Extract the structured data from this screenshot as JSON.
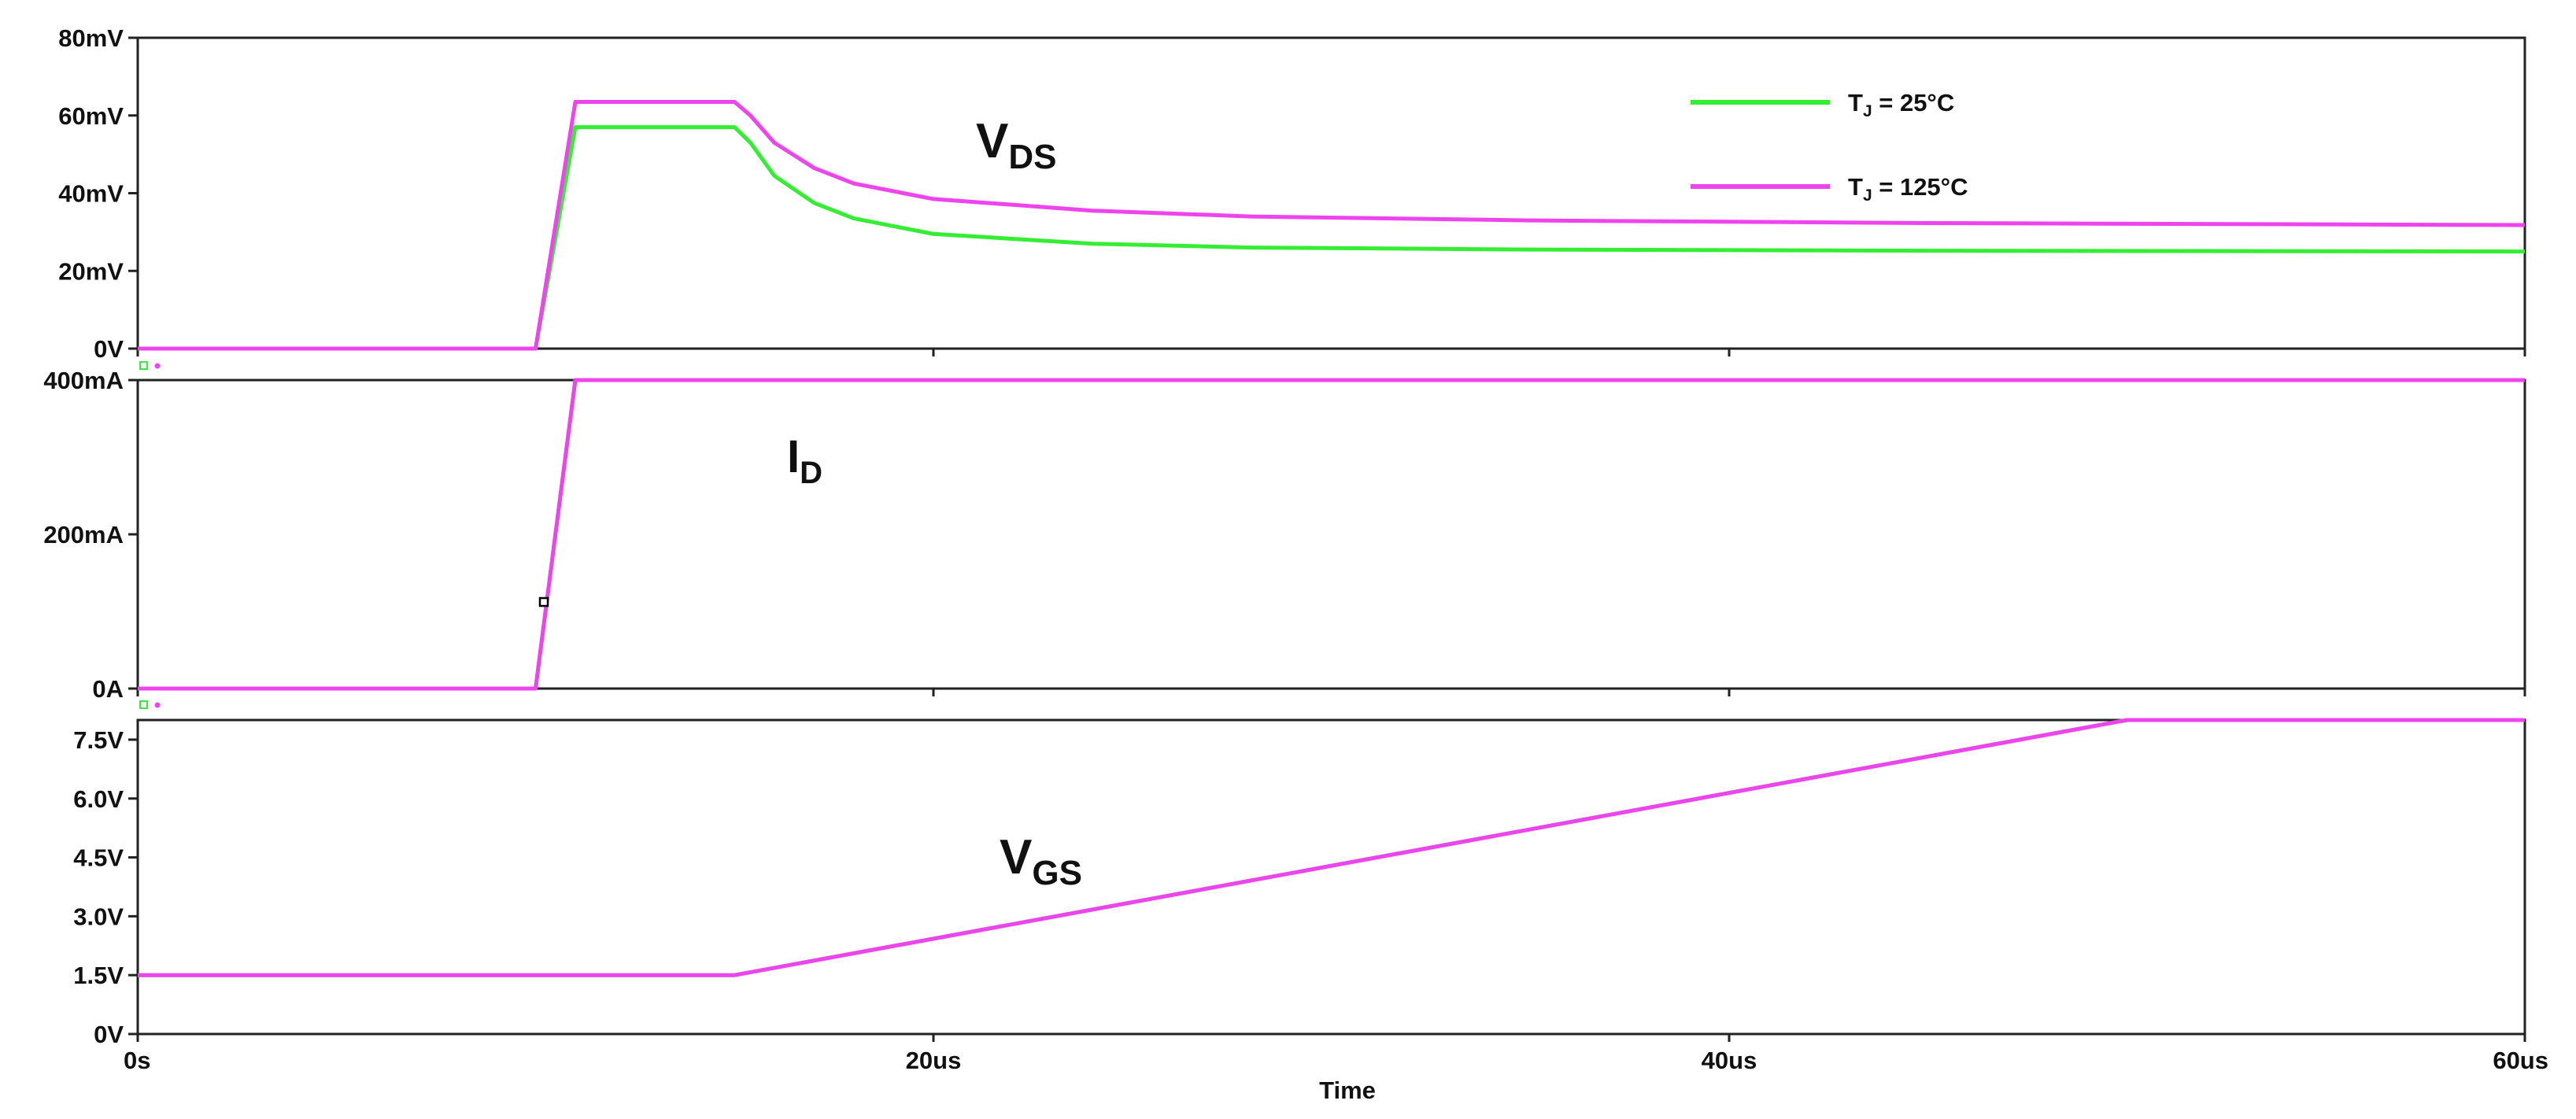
{
  "chart_data": {
    "type": "line",
    "xlabel": "Time",
    "xlim": [
      0,
      60
    ],
    "x_unit": "us",
    "x_ticks": [
      "0s",
      "20us",
      "40us",
      "60us"
    ],
    "x_tick_values": [
      0,
      20,
      40,
      60
    ],
    "legend": {
      "placement": "top-right",
      "entries": [
        {
          "label_main": "T",
          "label_sub": "J",
          "label_rest": " = 25°C",
          "color": "#33ee33"
        },
        {
          "label_main": "T",
          "label_sub": "J",
          "label_rest": " = 125°C",
          "color": "#ee44ee"
        }
      ]
    },
    "panels": [
      {
        "id": "vds",
        "label_main": "V",
        "label_sub": "DS",
        "unit": "mV",
        "ylim": [
          0,
          80
        ],
        "y_ticks": [
          "0V",
          "20mV",
          "40mV",
          "60mV",
          "80mV"
        ],
        "y_tick_values": [
          0,
          20,
          40,
          60,
          80
        ],
        "series": [
          {
            "color": "#33ee33",
            "x": [
              0,
              10,
              11,
              15,
              15.4,
              16,
              17,
              18,
              20,
              24,
              28,
              35,
              45,
              60
            ],
            "y": [
              0,
              0,
              57,
              57,
              53,
              44.5,
              37.5,
              33.5,
              29.5,
              27,
              26,
              25.5,
              25.2,
              25
            ]
          },
          {
            "color": "#ee44ee",
            "x": [
              0,
              10,
              11,
              15,
              15.4,
              16,
              17,
              18,
              20,
              24,
              28,
              35,
              45,
              60
            ],
            "y": [
              0,
              0,
              63.5,
              63.5,
              60,
              53,
              46.5,
              42.5,
              38.5,
              35.5,
              34,
              33,
              32.3,
              31.8
            ]
          }
        ]
      },
      {
        "id": "id",
        "label_main": "I",
        "label_sub": "D",
        "unit": "mA",
        "ylim": [
          0,
          400
        ],
        "y_ticks": [
          "0A",
          "200mA",
          "400mA"
        ],
        "y_tick_values": [
          0,
          200,
          400
        ],
        "series": [
          {
            "color": "#33ee33",
            "x": [
              0,
              10,
              11,
              60
            ],
            "y": [
              0,
              0,
              400,
              400
            ]
          },
          {
            "color": "#ee44ee",
            "x": [
              0,
              10,
              11,
              60
            ],
            "y": [
              0,
              0,
              400,
              400
            ]
          }
        ]
      },
      {
        "id": "vgs",
        "label_main": "V",
        "label_sub": "GS",
        "unit": "V",
        "ylim": [
          0,
          8
        ],
        "y_ticks": [
          "0V",
          "1.5V",
          "3.0V",
          "4.5V",
          "6.0V",
          "7.5V"
        ],
        "y_tick_values": [
          0,
          1.5,
          3.0,
          4.5,
          6.0,
          7.5
        ],
        "series": [
          {
            "color": "#33ee33",
            "x": [
              0,
              15,
              50,
              60
            ],
            "y": [
              1.5,
              1.5,
              8,
              8
            ]
          },
          {
            "color": "#ee44ee",
            "x": [
              0,
              15,
              50,
              60
            ],
            "y": [
              1.5,
              1.5,
              8,
              8
            ]
          }
        ]
      }
    ]
  }
}
